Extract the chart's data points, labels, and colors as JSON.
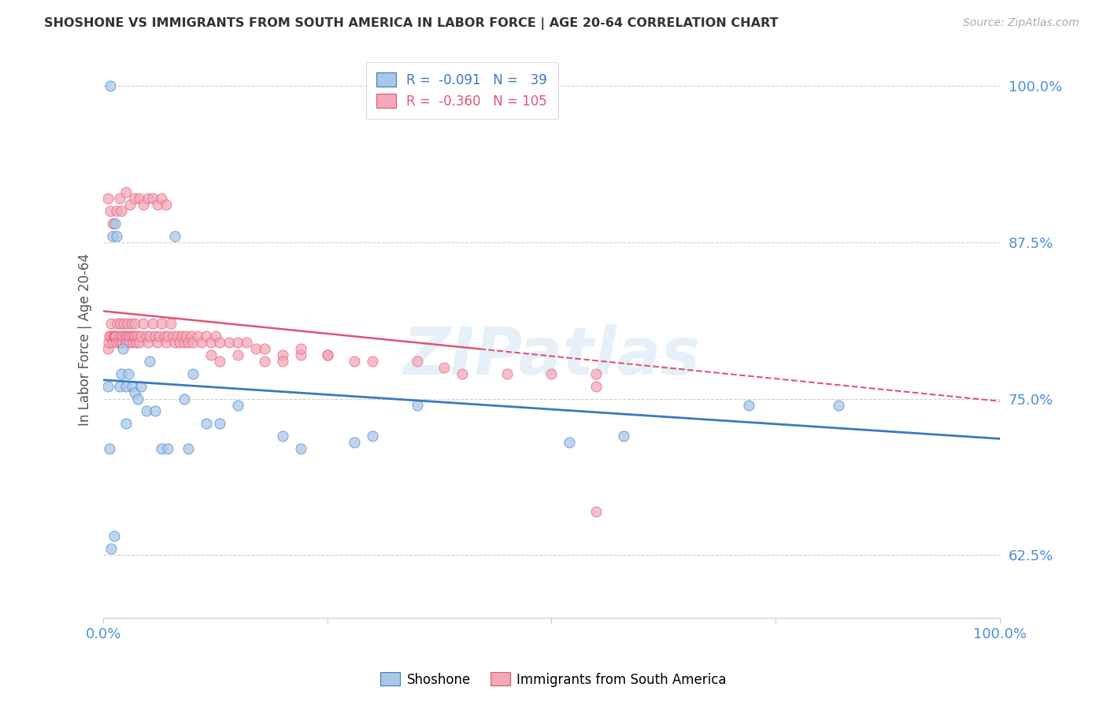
{
  "title": "SHOSHONE VS IMMIGRANTS FROM SOUTH AMERICA IN LABOR FORCE | AGE 20-64 CORRELATION CHART",
  "source": "Source: ZipAtlas.com",
  "ylabel": "In Labor Force | Age 20-64",
  "xlim": [
    0.0,
    1.0
  ],
  "ylim": [
    0.575,
    1.02
  ],
  "yticks": [
    0.625,
    0.75,
    0.875,
    1.0
  ],
  "ytick_labels": [
    "62.5%",
    "75.0%",
    "87.5%",
    "100.0%"
  ],
  "xticks": [
    0.0,
    0.25,
    0.5,
    0.75,
    1.0
  ],
  "xtick_labels": [
    "0.0%",
    "",
    "",
    "",
    "100.0%"
  ],
  "color_shoshone": "#a8c8e8",
  "color_immigrants": "#f4a8b8",
  "trendline_shoshone": "#3a7abf",
  "trendline_immigrants": "#e05575",
  "watermark": "ZIPatlas",
  "shoshone_trendline_start_y": 0.765,
  "shoshone_trendline_end_y": 0.718,
  "immigrants_trendline_start_y": 0.82,
  "immigrants_trendline_end_y": 0.748,
  "shoshone_x": [
    0.008,
    0.01,
    0.013,
    0.015,
    0.018,
    0.02,
    0.022,
    0.025,
    0.028,
    0.032,
    0.035,
    0.038,
    0.042,
    0.048,
    0.052,
    0.058,
    0.065,
    0.072,
    0.08,
    0.09,
    0.095,
    0.1,
    0.115,
    0.13,
    0.15,
    0.2,
    0.22,
    0.28,
    0.3,
    0.35,
    0.52,
    0.58,
    0.72,
    0.82,
    0.005,
    0.007,
    0.009,
    0.012,
    0.025
  ],
  "shoshone_y": [
    1.0,
    0.88,
    0.89,
    0.88,
    0.76,
    0.77,
    0.79,
    0.76,
    0.77,
    0.76,
    0.755,
    0.75,
    0.76,
    0.74,
    0.78,
    0.74,
    0.71,
    0.71,
    0.88,
    0.75,
    0.71,
    0.77,
    0.73,
    0.73,
    0.745,
    0.72,
    0.71,
    0.715,
    0.72,
    0.745,
    0.715,
    0.72,
    0.745,
    0.745,
    0.76,
    0.71,
    0.63,
    0.64,
    0.73
  ],
  "immigrants_x": [
    0.005,
    0.006,
    0.007,
    0.008,
    0.009,
    0.01,
    0.011,
    0.012,
    0.013,
    0.014,
    0.015,
    0.016,
    0.017,
    0.018,
    0.019,
    0.02,
    0.021,
    0.022,
    0.023,
    0.024,
    0.025,
    0.026,
    0.027,
    0.028,
    0.029,
    0.03,
    0.031,
    0.032,
    0.033,
    0.034,
    0.035,
    0.036,
    0.037,
    0.038,
    0.04,
    0.042,
    0.045,
    0.048,
    0.05,
    0.052,
    0.055,
    0.058,
    0.06,
    0.062,
    0.065,
    0.068,
    0.07,
    0.072,
    0.075,
    0.078,
    0.08,
    0.082,
    0.085,
    0.088,
    0.09,
    0.092,
    0.095,
    0.098,
    0.1,
    0.105,
    0.11,
    0.115,
    0.12,
    0.125,
    0.13,
    0.14,
    0.15,
    0.16,
    0.17,
    0.18,
    0.2,
    0.22,
    0.25,
    0.28,
    0.3,
    0.35,
    0.38,
    0.4,
    0.45,
    0.5,
    0.55,
    0.005,
    0.008,
    0.01,
    0.015,
    0.018,
    0.02,
    0.025,
    0.03,
    0.035,
    0.04,
    0.045,
    0.05,
    0.055,
    0.06,
    0.065,
    0.07,
    0.12,
    0.13,
    0.15,
    0.18,
    0.2,
    0.22,
    0.25,
    0.55,
    0.55
  ],
  "immigrants_y": [
    0.79,
    0.795,
    0.8,
    0.8,
    0.81,
    0.795,
    0.8,
    0.8,
    0.8,
    0.8,
    0.795,
    0.81,
    0.8,
    0.795,
    0.81,
    0.8,
    0.795,
    0.8,
    0.81,
    0.8,
    0.795,
    0.8,
    0.81,
    0.8,
    0.795,
    0.8,
    0.81,
    0.8,
    0.795,
    0.8,
    0.81,
    0.8,
    0.795,
    0.8,
    0.795,
    0.8,
    0.81,
    0.8,
    0.795,
    0.8,
    0.81,
    0.8,
    0.795,
    0.8,
    0.81,
    0.8,
    0.795,
    0.8,
    0.81,
    0.8,
    0.795,
    0.8,
    0.795,
    0.8,
    0.795,
    0.8,
    0.795,
    0.8,
    0.795,
    0.8,
    0.795,
    0.8,
    0.795,
    0.8,
    0.795,
    0.795,
    0.795,
    0.795,
    0.79,
    0.79,
    0.785,
    0.785,
    0.785,
    0.78,
    0.78,
    0.78,
    0.775,
    0.77,
    0.77,
    0.77,
    0.77,
    0.91,
    0.9,
    0.89,
    0.9,
    0.91,
    0.9,
    0.915,
    0.905,
    0.91,
    0.91,
    0.905,
    0.91,
    0.91,
    0.905,
    0.91,
    0.905,
    0.785,
    0.78,
    0.785,
    0.78,
    0.78,
    0.79,
    0.785,
    0.76,
    0.66
  ]
}
